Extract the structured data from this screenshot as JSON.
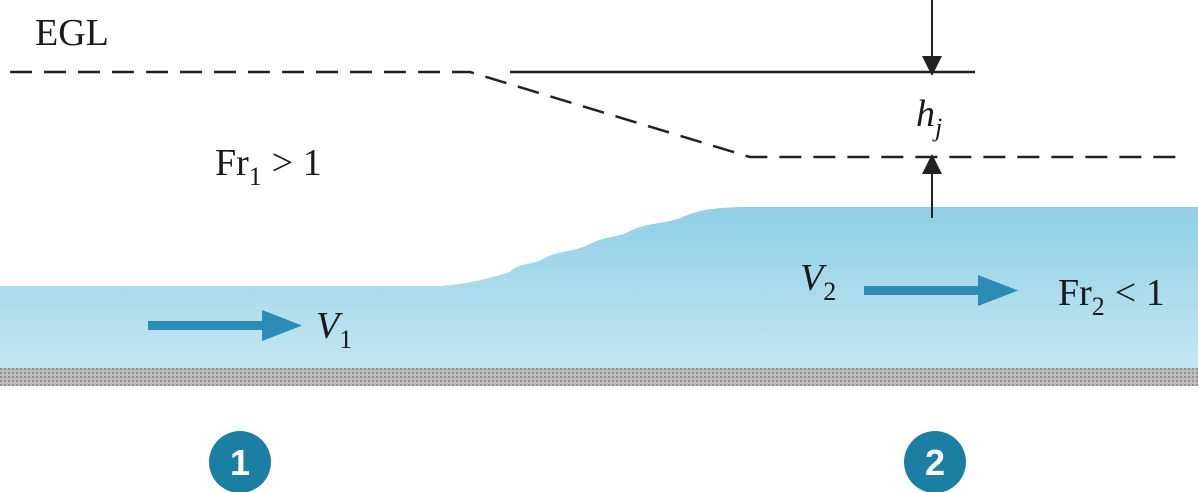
{
  "labels": {
    "egl": "EGL",
    "fr1": {
      "main": "Fr",
      "sub": "1",
      "tail": "> 1"
    },
    "v1": {
      "main": "V",
      "sub": "1"
    },
    "v2": {
      "main": "V",
      "sub": "2"
    },
    "fr2": {
      "main": "Fr",
      "sub": "2",
      "tail": "< 1"
    },
    "hj": {
      "main": "h",
      "sub": "j"
    }
  },
  "sections": [
    "1",
    "2"
  ]
}
